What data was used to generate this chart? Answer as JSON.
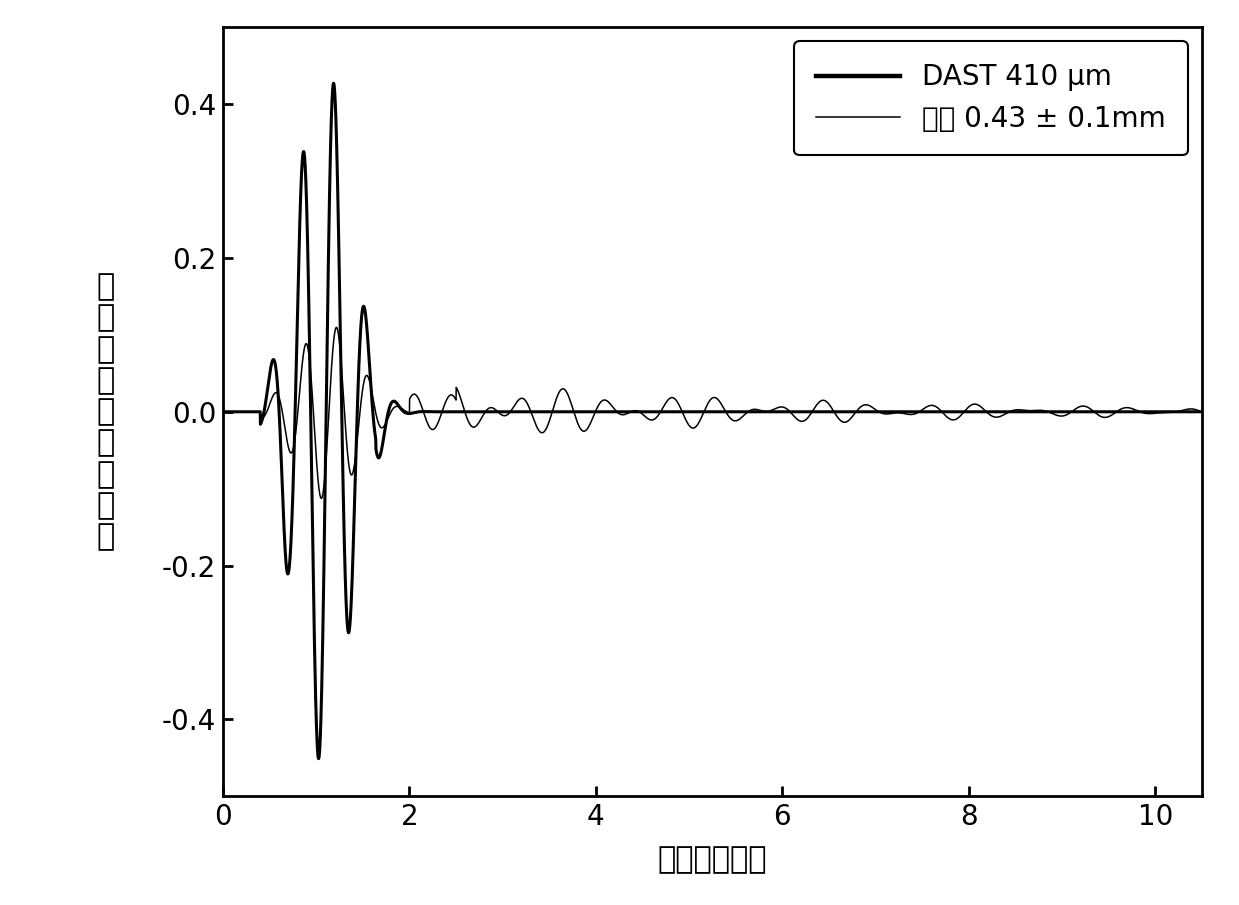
{
  "xlim": [
    0,
    10.5
  ],
  "ylim": [
    -0.5,
    0.5
  ],
  "xticks": [
    0,
    2,
    4,
    6,
    8,
    10
  ],
  "yticks": [
    -0.4,
    -0.2,
    0,
    0.2,
    0.4
  ],
  "xlabel": "时间（皮秒）",
  "ylabel_chars": [
    "太",
    "赫",
    "兹",
    "脉",
    "冲",
    "信",
    "号",
    "强",
    "度"
  ],
  "legend_line1": "DAST 410 μm",
  "legend_line2": "样品 0.43 ± 0.1mm",
  "line_color": "#000000",
  "bg_color": "#ffffff",
  "linewidth_thick": 2.2,
  "linewidth_thin": 1.1,
  "fontsize_legend": 20,
  "fontsize_ticks": 20,
  "fontsize_label": 22,
  "fontsize_ylabel": 22
}
